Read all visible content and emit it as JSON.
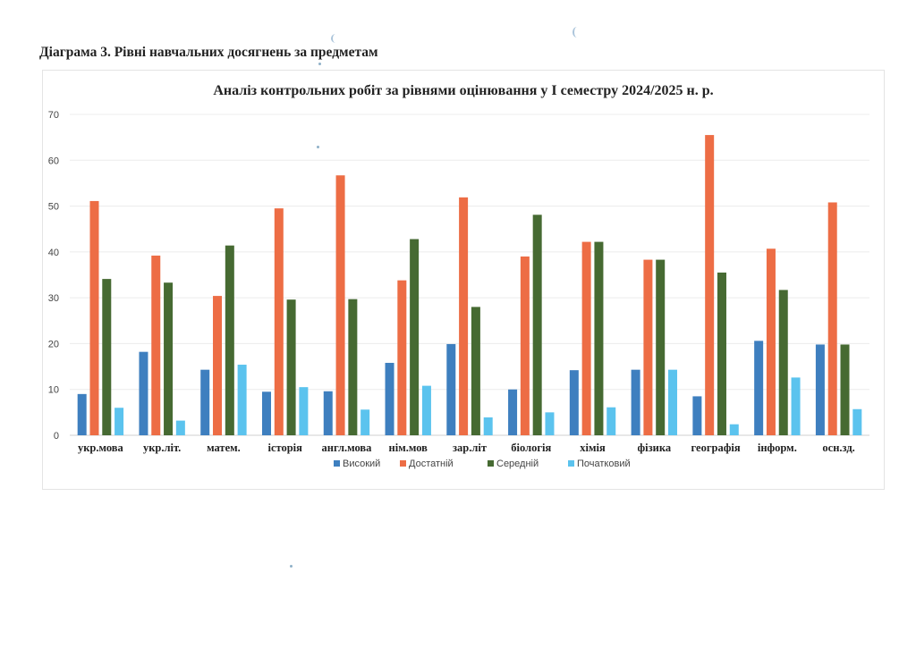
{
  "heading": "Діаграма 3. Рівні навчальних досягнень за  предметам",
  "chart_data": {
    "type": "bar",
    "title": "Аналіз  контрольних робіт за рівнями оцінювання у  І семестру 2024/2025 н. р.",
    "categories": [
      "укр.мова",
      "укр.літ.",
      "матем.",
      "історія",
      "англ.мова",
      "нім.мов",
      "зар.літ",
      "біологія",
      "хімія",
      "фізика",
      "географія",
      "інформ.",
      "осн.зд."
    ],
    "ylim": [
      0,
      70
    ],
    "yticks": [
      0,
      10,
      20,
      30,
      40,
      50,
      60,
      70
    ],
    "grid": true,
    "legend_position": "bottom",
    "series": [
      {
        "name": "Високий",
        "color": "#3e7fbf",
        "values": [
          9,
          18.2,
          14.3,
          9.5,
          9.6,
          15.8,
          19.9,
          10,
          14.2,
          14.3,
          8.5,
          20.6,
          19.8
        ]
      },
      {
        "name": "Достатній",
        "color": "#ed6d45",
        "values": [
          51.1,
          39.2,
          30.4,
          49.5,
          56.7,
          33.8,
          51.9,
          39,
          42.2,
          38.3,
          65.5,
          40.7,
          50.8
        ]
      },
      {
        "name": "Середній",
        "color": "#466a32",
        "values": [
          34.1,
          33.3,
          41.4,
          29.6,
          29.7,
          42.8,
          28,
          48.1,
          42.2,
          38.3,
          35.5,
          31.7,
          19.8
        ]
      },
      {
        "name": "Початковий",
        "color": "#5bc3ee",
        "values": [
          6,
          3.2,
          15.4,
          10.5,
          5.6,
          10.8,
          3.9,
          5,
          6.1,
          14.3,
          2.4,
          12.6,
          5.7
        ]
      }
    ]
  }
}
